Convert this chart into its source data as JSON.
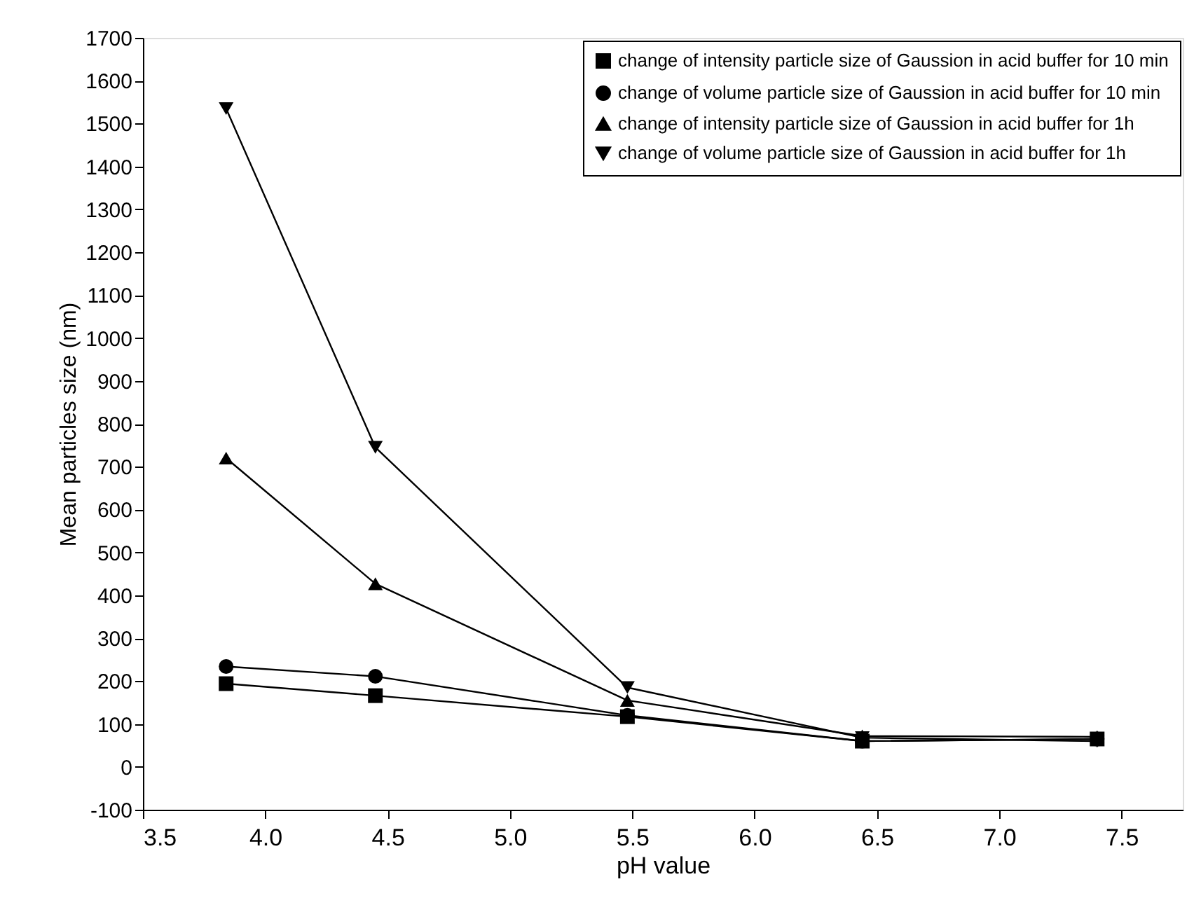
{
  "chart_data": {
    "type": "line",
    "xlabel": "pH value",
    "ylabel": "Mean particles size (nm)",
    "x": [
      3.84,
      4.45,
      5.48,
      6.44,
      7.4
    ],
    "series": [
      {
        "name": "change of intensity particle size of Gaussion in acid buffer for 10 min",
        "color": "#000000",
        "marker": "square",
        "values": [
          194,
          166,
          117,
          60,
          65
        ]
      },
      {
        "name": "change of volume particle size of Gaussion in acid buffer for 10 min",
        "color": "#000000",
        "marker": "circle",
        "values": [
          234,
          211,
          120,
          60,
          65
        ]
      },
      {
        "name": "change of intensity particle size of Gaussion in acid buffer for 1h",
        "color": "#000000",
        "marker": "triangle",
        "values": [
          720,
          427,
          155,
          72,
          70
        ]
      },
      {
        "name": "change of volume particle size of Gaussion in acid buffer for 1h",
        "color": "#000000",
        "marker": "triangle-down",
        "values": [
          1535,
          745,
          185,
          68,
          60
        ]
      }
    ],
    "xlim": [
      3.5,
      7.75
    ],
    "xticks": [
      3.5,
      {
        "value": 4,
        "label": "4.0"
      },
      4.5,
      {
        "value": 5,
        "label": "5.0"
      },
      5.5,
      {
        "value": 6,
        "label": "6.0"
      },
      6.5,
      {
        "value": 7,
        "label": "7.0"
      },
      7.5
    ],
    "ylim": [
      -100,
      1700
    ],
    "yticks": [
      -100,
      0,
      100,
      200,
      300,
      400,
      500,
      600,
      700,
      800,
      900,
      1000,
      1100,
      1200,
      1300,
      1400,
      1500,
      1600,
      1700
    ],
    "grid": false,
    "legend": "top right",
    "line_style": "solid"
  }
}
